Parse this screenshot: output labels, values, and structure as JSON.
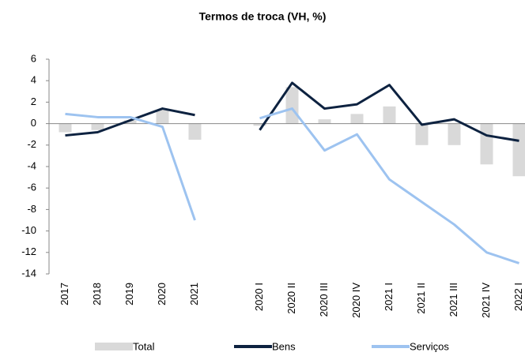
{
  "chart_data": {
    "type": "bar-line",
    "title": "Termos de troca (VH, %)",
    "categories": [
      "2017",
      "2018",
      "2019",
      "2020",
      "2021",
      null,
      "2020 I",
      "2020 II",
      "2020 III",
      "2020 IV",
      "2021 I",
      "2021 II",
      "2021 III",
      "2021 IV",
      "2022 I"
    ],
    "series": [
      {
        "name": "Total",
        "kind": "bar",
        "color": "#d9d9d9",
        "values": [
          -0.8,
          -0.6,
          0.3,
          1.3,
          -1.5,
          null,
          -0.2,
          3.4,
          0.4,
          0.9,
          1.6,
          -2.0,
          -2.0,
          -3.8,
          -4.9
        ]
      },
      {
        "name": "Bens",
        "kind": "line",
        "color": "#0d2240",
        "values": [
          -1.1,
          -0.8,
          0.3,
          1.4,
          0.8,
          null,
          -0.6,
          3.8,
          1.4,
          1.8,
          3.6,
          -0.1,
          0.4,
          -1.1,
          -1.6
        ]
      },
      {
        "name": "Serviços",
        "kind": "line",
        "color": "#9dc3f0",
        "values": [
          0.9,
          0.6,
          0.6,
          -0.3,
          -9.0,
          null,
          0.5,
          1.4,
          -2.5,
          -1.0,
          -5.2,
          -7.3,
          -9.4,
          -12.0,
          -13.0
        ]
      }
    ],
    "ylim": [
      -14,
      6
    ],
    "yticks": [
      -14,
      -12,
      -10,
      -8,
      -6,
      -4,
      -2,
      0,
      2,
      4,
      6
    ]
  }
}
